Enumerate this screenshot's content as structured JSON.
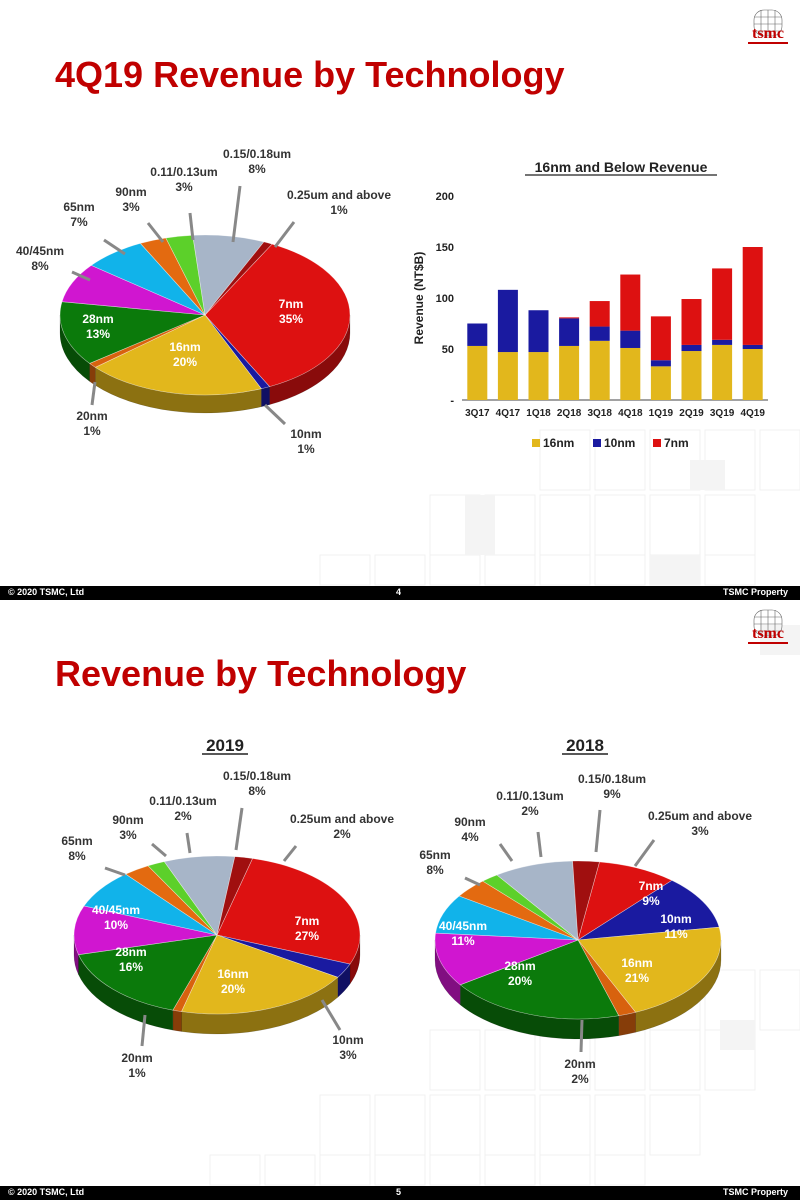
{
  "slides": [
    {
      "title": "4Q19 Revenue by Technology",
      "footer": {
        "left": "© 2020 TSMC, Ltd",
        "page": "4",
        "right": "TSMC Property"
      },
      "logo_text": "tsmc"
    },
    {
      "title": "Revenue by Technology",
      "footer": {
        "left": "© 2020 TSMC, Ltd",
        "page": "5",
        "right": "TSMC Property"
      },
      "logo_text": "tsmc"
    }
  ],
  "colors": {
    "title_red": "#c00000",
    "16nm": "#e2b71c",
    "10nm": "#1a1aa0",
    "7nm": "#dd1111",
    "28nm": "#0b7a0b",
    "40/45nm": "#d016d0",
    "65nm": "#11b3ea",
    "90nm": "#e36a10",
    "0.11/0.13um": "#5cd02a",
    "0.15/0.18um": "#a7b5c8",
    "0.25um and above": "#a00f0f",
    "20nm": "#d8620e"
  },
  "chart_data": [
    {
      "type": "pie",
      "id": "pie4q19",
      "title": "",
      "slices": [
        {
          "name": "7nm",
          "pct": 35
        },
        {
          "name": "10nm",
          "pct": 1
        },
        {
          "name": "16nm",
          "pct": 20
        },
        {
          "name": "20nm",
          "pct": 1
        },
        {
          "name": "28nm",
          "pct": 13
        },
        {
          "name": "40/45nm",
          "pct": 8
        },
        {
          "name": "65nm",
          "pct": 7
        },
        {
          "name": "90nm",
          "pct": 3
        },
        {
          "name": "0.11/0.13um",
          "pct": 3
        },
        {
          "name": "0.15/0.18um",
          "pct": 8
        },
        {
          "name": "0.25um and above",
          "pct": 1
        }
      ]
    },
    {
      "type": "bar",
      "id": "bars16nm",
      "title": "16nm and Below Revenue",
      "ylabel": "Revenue (NT$B)",
      "ylim": [
        0,
        200
      ],
      "yticks": [
        "-",
        "50",
        "100",
        "150",
        "200"
      ],
      "categories": [
        "3Q17",
        "4Q17",
        "1Q18",
        "2Q18",
        "3Q18",
        "4Q18",
        "1Q19",
        "2Q19",
        "3Q19",
        "4Q19"
      ],
      "stacked": true,
      "series": [
        {
          "name": "16nm",
          "values": [
            53,
            47,
            47,
            53,
            58,
            51,
            33,
            48,
            54,
            50
          ]
        },
        {
          "name": "10nm",
          "values": [
            22,
            61,
            41,
            27,
            14,
            17,
            6,
            6,
            5,
            4
          ]
        },
        {
          "name": "7nm",
          "values": [
            0,
            0,
            0,
            1,
            25,
            55,
            43,
            45,
            70,
            96
          ]
        }
      ]
    },
    {
      "type": "pie",
      "id": "pie2019",
      "title": "2019",
      "slices": [
        {
          "name": "7nm",
          "pct": 27
        },
        {
          "name": "10nm",
          "pct": 3
        },
        {
          "name": "16nm",
          "pct": 20
        },
        {
          "name": "20nm",
          "pct": 1
        },
        {
          "name": "28nm",
          "pct": 16
        },
        {
          "name": "40/45nm",
          "pct": 10
        },
        {
          "name": "65nm",
          "pct": 8
        },
        {
          "name": "90nm",
          "pct": 3
        },
        {
          "name": "0.11/0.13um",
          "pct": 2
        },
        {
          "name": "0.15/0.18um",
          "pct": 8
        },
        {
          "name": "0.25um and above",
          "pct": 2
        }
      ]
    },
    {
      "type": "pie",
      "id": "pie2018",
      "title": "2018",
      "slices": [
        {
          "name": "7nm",
          "pct": 9
        },
        {
          "name": "10nm",
          "pct": 11
        },
        {
          "name": "16nm",
          "pct": 21
        },
        {
          "name": "20nm",
          "pct": 2
        },
        {
          "name": "28nm",
          "pct": 20
        },
        {
          "name": "40/45nm",
          "pct": 11
        },
        {
          "name": "65nm",
          "pct": 8
        },
        {
          "name": "90nm",
          "pct": 4
        },
        {
          "name": "0.11/0.13um",
          "pct": 2
        },
        {
          "name": "0.15/0.18um",
          "pct": 9
        },
        {
          "name": "0.25um and above",
          "pct": 3
        }
      ]
    }
  ]
}
